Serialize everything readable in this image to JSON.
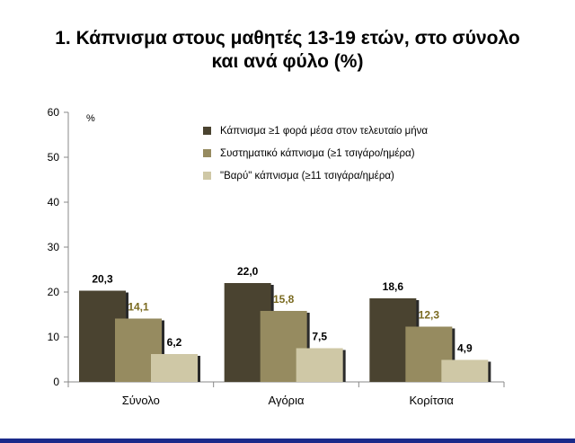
{
  "title": {
    "line1": "1. Κάπνισμα στους μαθητές 13-19 ετών, στο σύνολο",
    "line2": "και ανά φύλο (%)"
  },
  "chart_data": {
    "type": "bar",
    "categories": [
      "Σύνολο",
      "Αγόρια",
      "Κορίτσια"
    ],
    "series": [
      {
        "name": "Κάπνισμα ≥1 φορά μέσα στον τελευταίο μήνα",
        "values": [
          20.3,
          22.0,
          18.6
        ],
        "labels": [
          "20,3",
          "22,0",
          "18,6"
        ],
        "color": "#4a4330",
        "label_color": "#000000"
      },
      {
        "name": "Συστηματικό κάπνισμα (≥1 τσιγάρο/ημέρα)",
        "values": [
          14.1,
          15.8,
          12.3
        ],
        "labels": [
          "14,1",
          "15,8",
          "12,3"
        ],
        "color": "#968b60",
        "label_color": "#7a6a20"
      },
      {
        "name": "\"Βαρύ\" κάπνισμα (≥11 τσιγάρα/ημέρα)",
        "values": [
          6.2,
          7.5,
          4.9
        ],
        "labels": [
          "6,2",
          "7,5",
          "4,9"
        ],
        "color": "#cfc8a6",
        "label_color": "#000000"
      }
    ],
    "ylabel": "%",
    "ylim": [
      0,
      60
    ],
    "yticks": [
      "0",
      "10",
      "20",
      "30",
      "40",
      "50",
      "60"
    ],
    "grid": false,
    "legend_position": "top-center"
  },
  "colors": {
    "bottom_bar": "#1a2a8a",
    "bar_shadow": "#2a2a2a"
  }
}
